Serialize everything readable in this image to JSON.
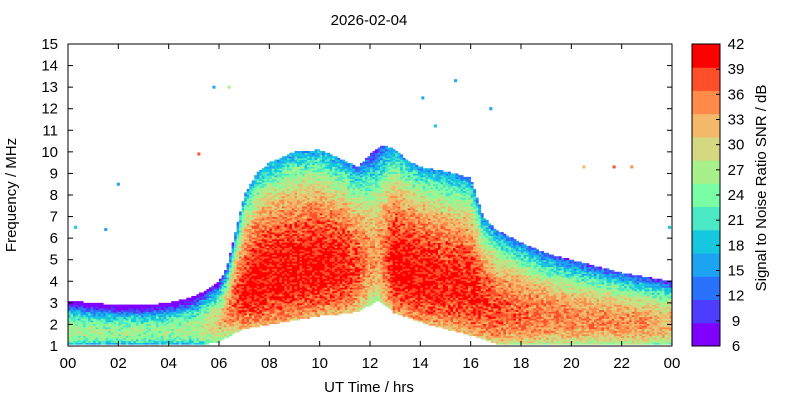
{
  "chart_data": {
    "type": "heatmap",
    "title": "2026-02-04",
    "xlabel": "UT Time / hrs",
    "ylabel": "Frequency / MHz",
    "colorbar_label": "Signal to Noise Ratio SNR / dB",
    "xlim": [
      0,
      24
    ],
    "ylim": [
      1,
      15
    ],
    "x_ticks": [
      "00",
      "02",
      "04",
      "06",
      "08",
      "10",
      "12",
      "14",
      "16",
      "18",
      "20",
      "22",
      "00"
    ],
    "x_tick_values": [
      0,
      2,
      4,
      6,
      8,
      10,
      12,
      14,
      16,
      18,
      20,
      22,
      24
    ],
    "y_ticks": [
      "1",
      "2",
      "3",
      "4",
      "5",
      "6",
      "7",
      "8",
      "9",
      "10",
      "11",
      "12",
      "13",
      "14",
      "15"
    ],
    "y_tick_values": [
      1,
      2,
      3,
      4,
      5,
      6,
      7,
      8,
      9,
      10,
      11,
      12,
      13,
      14,
      15
    ],
    "colorbar": {
      "range": [
        6,
        42
      ],
      "ticks": [
        "6",
        "9",
        "12",
        "15",
        "18",
        "21",
        "24",
        "27",
        "30",
        "33",
        "36",
        "39",
        "42"
      ],
      "tick_values": [
        6,
        9,
        12,
        15,
        18,
        21,
        24,
        27,
        30,
        33,
        36,
        39,
        42
      ],
      "colors": [
        "#8000ff",
        "#4f3dff",
        "#2a72fb",
        "#1ca3f2",
        "#15c8df",
        "#4ae8c5",
        "#7afea5",
        "#a8f08b",
        "#d4d880",
        "#f4b86b",
        "#ff8a4a",
        "#ff4f2a",
        "#ff0000"
      ]
    },
    "frequency_envelope": {
      "hours": [
        0,
        1,
        2,
        3,
        4,
        5,
        5.5,
        6,
        6.3,
        6.6,
        7,
        7.5,
        8,
        9,
        10,
        11,
        11.5,
        12,
        12.3,
        12.6,
        13,
        13.5,
        14,
        15,
        16,
        16.5,
        17,
        18,
        19,
        20,
        21,
        22,
        23,
        24
      ],
      "upper_mhz": [
        3.1,
        3.0,
        2.9,
        2.9,
        3.0,
        3.3,
        3.6,
        4.0,
        4.6,
        6.0,
        8.0,
        9.0,
        9.5,
        10.0,
        10.1,
        9.6,
        9.3,
        9.9,
        10.2,
        10.3,
        10.1,
        9.6,
        9.3,
        9.1,
        8.8,
        7.0,
        6.4,
        5.8,
        5.3,
        5.0,
        4.7,
        4.4,
        4.2,
        4.0
      ],
      "lower_mhz": [
        1.1,
        1.1,
        1.1,
        1.1,
        1.1,
        1.1,
        1.1,
        1.2,
        1.4,
        1.6,
        1.8,
        1.9,
        2.0,
        2.2,
        2.4,
        2.5,
        2.6,
        2.9,
        3.1,
        2.9,
        2.5,
        2.3,
        2.1,
        1.8,
        1.5,
        1.3,
        1.1,
        1.1,
        1.1,
        1.1,
        1.1,
        1.1,
        1.1,
        1.1
      ],
      "peak_snr_db": [
        28,
        27,
        27,
        27,
        27,
        28,
        30,
        32,
        35,
        38,
        41,
        42,
        42,
        42,
        42,
        41,
        39,
        36,
        35,
        38,
        42,
        42,
        42,
        41,
        41,
        40,
        39,
        38,
        37,
        36,
        36,
        36,
        35,
        34
      ]
    },
    "sporadic_points": [
      {
        "hour": 6.4,
        "mhz": 13.0,
        "snr_db": 27
      },
      {
        "hour": 5.8,
        "mhz": 13.0,
        "snr_db": 15
      },
      {
        "hour": 14.1,
        "mhz": 12.5,
        "snr_db": 15
      },
      {
        "hour": 14.6,
        "mhz": 11.2,
        "snr_db": 18
      },
      {
        "hour": 15.4,
        "mhz": 13.3,
        "snr_db": 15
      },
      {
        "hour": 16.8,
        "mhz": 12.0,
        "snr_db": 15
      },
      {
        "hour": 5.2,
        "mhz": 9.9,
        "snr_db": 39
      },
      {
        "hour": 20.5,
        "mhz": 9.3,
        "snr_db": 33
      },
      {
        "hour": 21.7,
        "mhz": 9.3,
        "snr_db": 39
      },
      {
        "hour": 22.4,
        "mhz": 9.3,
        "snr_db": 36
      },
      {
        "hour": 0.3,
        "mhz": 6.5,
        "snr_db": 18
      },
      {
        "hour": 1.5,
        "mhz": 6.4,
        "snr_db": 15
      },
      {
        "hour": 2.0,
        "mhz": 8.5,
        "snr_db": 15
      },
      {
        "hour": 23.9,
        "mhz": 6.5,
        "snr_db": 18
      }
    ]
  }
}
